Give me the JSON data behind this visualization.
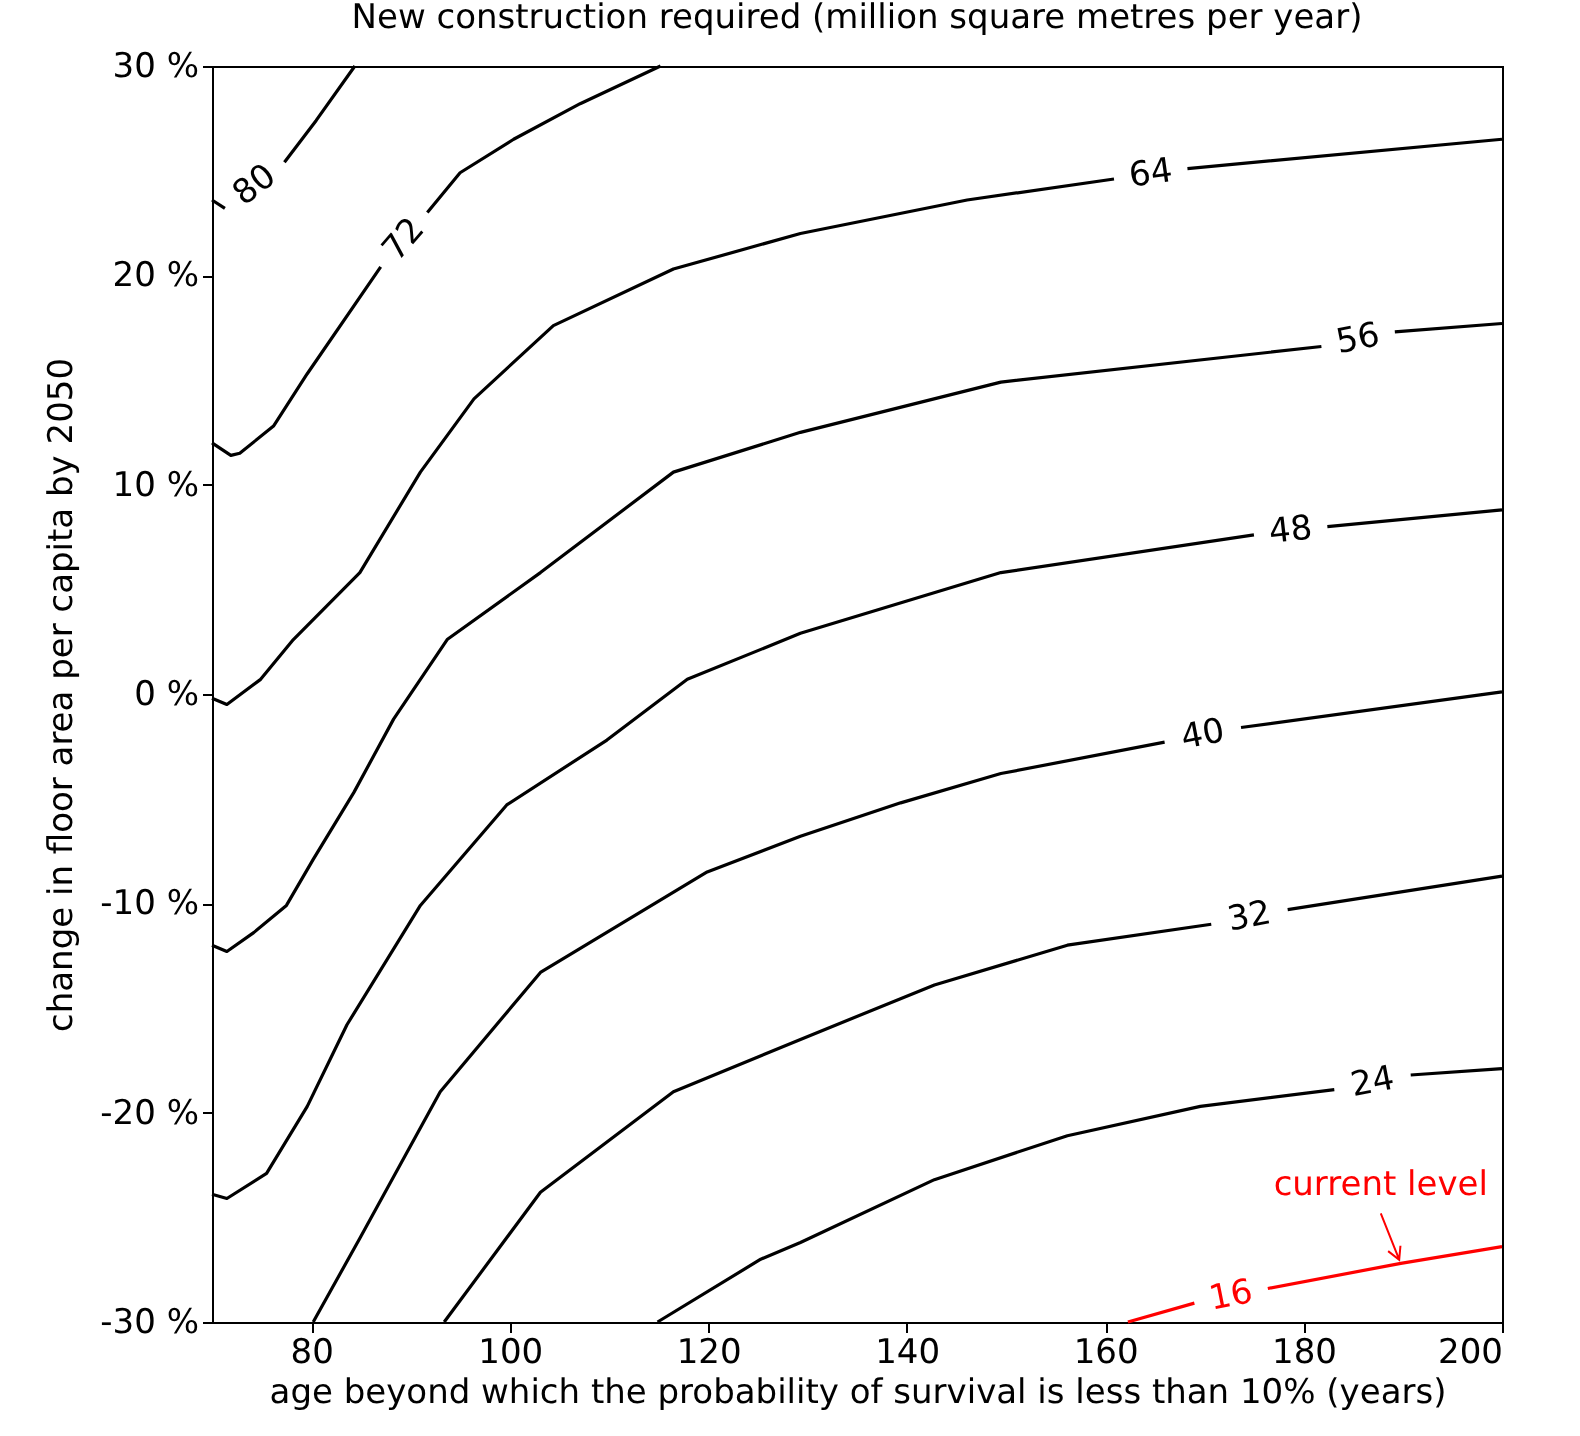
{
  "chart_data": {
    "type": "line",
    "title": "New construction required (million square metres per year)",
    "xlabel": "age beyond which the probability of survival is less than 10% (years)",
    "ylabel": "change in floor area per capita by 2050",
    "xlim": [
      70,
      200
    ],
    "ylim": [
      -30,
      30
    ],
    "xticks": [
      80,
      100,
      120,
      140,
      160,
      180,
      200
    ],
    "yticks": [
      {
        "value": -30,
        "label": "-30 %"
      },
      {
        "value": -20,
        "label": "-20 %"
      },
      {
        "value": -10,
        "label": "-10 %"
      },
      {
        "value": 0,
        "label": "0 %"
      },
      {
        "value": 10,
        "label": "10 %"
      },
      {
        "value": 20,
        "label": "20 %"
      },
      {
        "value": 30,
        "label": "30 %"
      }
    ],
    "grid": false,
    "legend": false,
    "series": [
      {
        "name": "80",
        "color": "#000000",
        "x": [
          70,
          71.3,
          74.3,
          77.3,
          80.5,
          84.4
        ],
        "values": [
          23.6,
          23.2,
          null,
          25.4,
          27.4,
          30
        ]
      },
      {
        "name": "72",
        "color": "#000000",
        "x": [
          70,
          71.9,
          72.8,
          76.2,
          79.6,
          87.0,
          89.3,
          91.7,
          95.0,
          100.4,
          107.1,
          115.2
        ],
        "values": [
          12.0,
          11.4,
          11.5,
          12.8,
          15.3,
          20.4,
          null,
          23.0,
          24.9,
          26.5,
          28.2,
          30
        ]
      },
      {
        "name": "64",
        "color": "#000000",
        "x": [
          70,
          71.5,
          74.9,
          78.2,
          84.9,
          91.0,
          96.4,
          104.4,
          116.5,
          129.3,
          146.1,
          160.9,
          164.6,
          168.3,
          200
        ],
        "values": [
          -0.2,
          -0.5,
          0.7,
          2.6,
          5.8,
          10.6,
          14.1,
          17.6,
          20.3,
          22.0,
          23.6,
          24.6,
          null,
          25.1,
          26.5
        ]
      },
      {
        "name": "56",
        "color": "#000000",
        "x": [
          70,
          71.5,
          74.2,
          77.5,
          80.2,
          84.3,
          88.3,
          93.7,
          103.1,
          116.5,
          129.3,
          149.5,
          181.8,
          185.5,
          189.2,
          200
        ],
        "values": [
          -12.0,
          -12.3,
          -11.4,
          -10.1,
          -7.9,
          -4.7,
          -1.2,
          2.6,
          5.8,
          10.6,
          12.5,
          14.9,
          16.6,
          null,
          17.3,
          17.7
        ]
      },
      {
        "name": "48",
        "color": "#000000",
        "x": [
          70,
          71.5,
          75.5,
          79.6,
          83.6,
          91.0,
          99.7,
          109.8,
          117.9,
          129.3,
          149.5,
          175.0,
          178.7,
          182.4,
          200
        ],
        "values": [
          -23.9,
          -24.1,
          -22.9,
          -19.7,
          -15.8,
          -10.1,
          -5.3,
          -2.2,
          0.7,
          2.9,
          5.8,
          7.6,
          null,
          8.0,
          8.8
        ]
      },
      {
        "name": "40",
        "color": "#000000",
        "x": [
          80.2,
          84.9,
          93.0,
          103.1,
          119.9,
          129.3,
          139.4,
          149.5,
          166.0,
          169.9,
          173.7,
          200
        ],
        "values": [
          -30,
          -26.0,
          -19.0,
          -13.3,
          -8.5,
          -6.8,
          -5.2,
          -3.8,
          -2.3,
          null,
          -1.6,
          0.1
        ]
      },
      {
        "name": "32",
        "color": "#000000",
        "x": [
          93.4,
          103.1,
          116.5,
          129.3,
          142.8,
          156.2,
          170.7,
          174.6,
          178.4,
          200
        ],
        "values": [
          -30,
          -23.8,
          -19.0,
          -16.5,
          -13.9,
          -12.0,
          -11.0,
          null,
          -10.3,
          -8.7
        ]
      },
      {
        "name": "24",
        "color": "#000000",
        "x": [
          114.9,
          125.3,
          129.3,
          142.8,
          156.2,
          169.6,
          183.1,
          187.0,
          190.8,
          200
        ],
        "values": [
          -30,
          -27.0,
          -26.2,
          -23.2,
          -21.1,
          -19.7,
          -18.9,
          null,
          -18.2,
          -17.9
        ]
      },
      {
        "name": "16",
        "color": "#ff0000",
        "x": [
          162.3,
          169.0,
          172.7,
          176.4,
          189.8,
          200
        ],
        "values": [
          -30,
          -29.1,
          null,
          -28.4,
          -27.2,
          -26.4
        ]
      }
    ],
    "annotations": [
      {
        "text": "current level",
        "x": 189.8,
        "y": -27.2
      }
    ]
  }
}
